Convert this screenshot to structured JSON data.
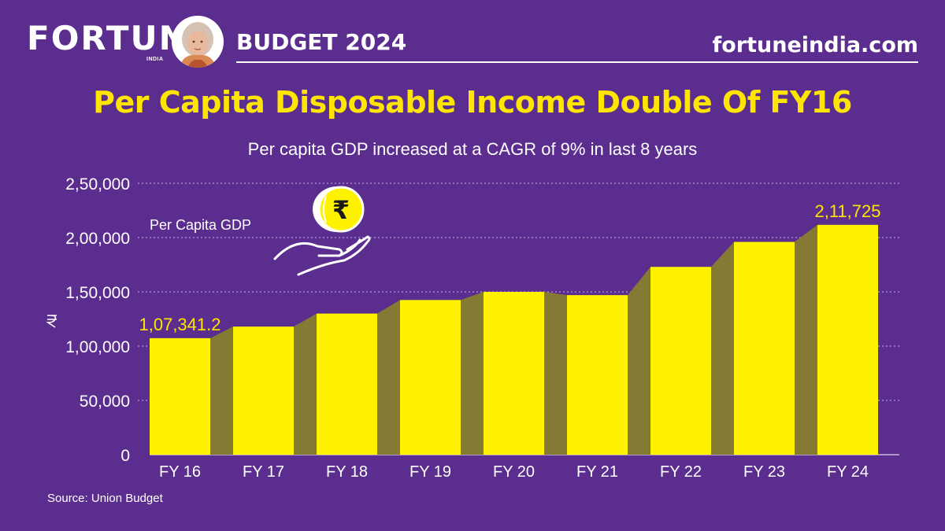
{
  "header": {
    "brand": "FORTUNE",
    "brand_sub": "INDIA",
    "budget_label": "BUDGET 2024",
    "site": "fortuneindia.com"
  },
  "chart_data": {
    "type": "bar",
    "title": "Per Capita Disposable Income Double Of FY16",
    "subtitle": "Per capita GDP increased at a CAGR of 9% in last 8 years",
    "series_label": "Per Capita GDP",
    "categories": [
      "FY 16",
      "FY 17",
      "FY 18",
      "FY 19",
      "FY 20",
      "FY 21",
      "FY 22",
      "FY 23",
      "FY 24"
    ],
    "values": [
      107341.2,
      118000,
      130000,
      142500,
      150000,
      147000,
      173000,
      196000,
      211725
    ],
    "value_labels": [
      {
        "index": 0,
        "text": "1,07,341.2"
      },
      {
        "index": 8,
        "text": "2,11,725"
      }
    ],
    "yticks": [
      0,
      50000,
      100000,
      150000,
      200000,
      250000
    ],
    "ytick_labels": [
      "0",
      "50,000",
      "1,00,000",
      "1,50,000",
      "2,00,000",
      "2,50,000"
    ],
    "ylim": [
      0,
      250000
    ],
    "grid": true,
    "colors": {
      "background": "#5b2d8e",
      "bar": "#fff200",
      "bar_shadow": "#857a33",
      "title": "#ffe600",
      "value_label": "#ffe600"
    }
  },
  "footer": {
    "source": "Source: Union Budget"
  },
  "icons": {
    "coin": "rupee-coin-icon",
    "hand": "hand-icon",
    "axis": "rupee-symbol-icon"
  }
}
